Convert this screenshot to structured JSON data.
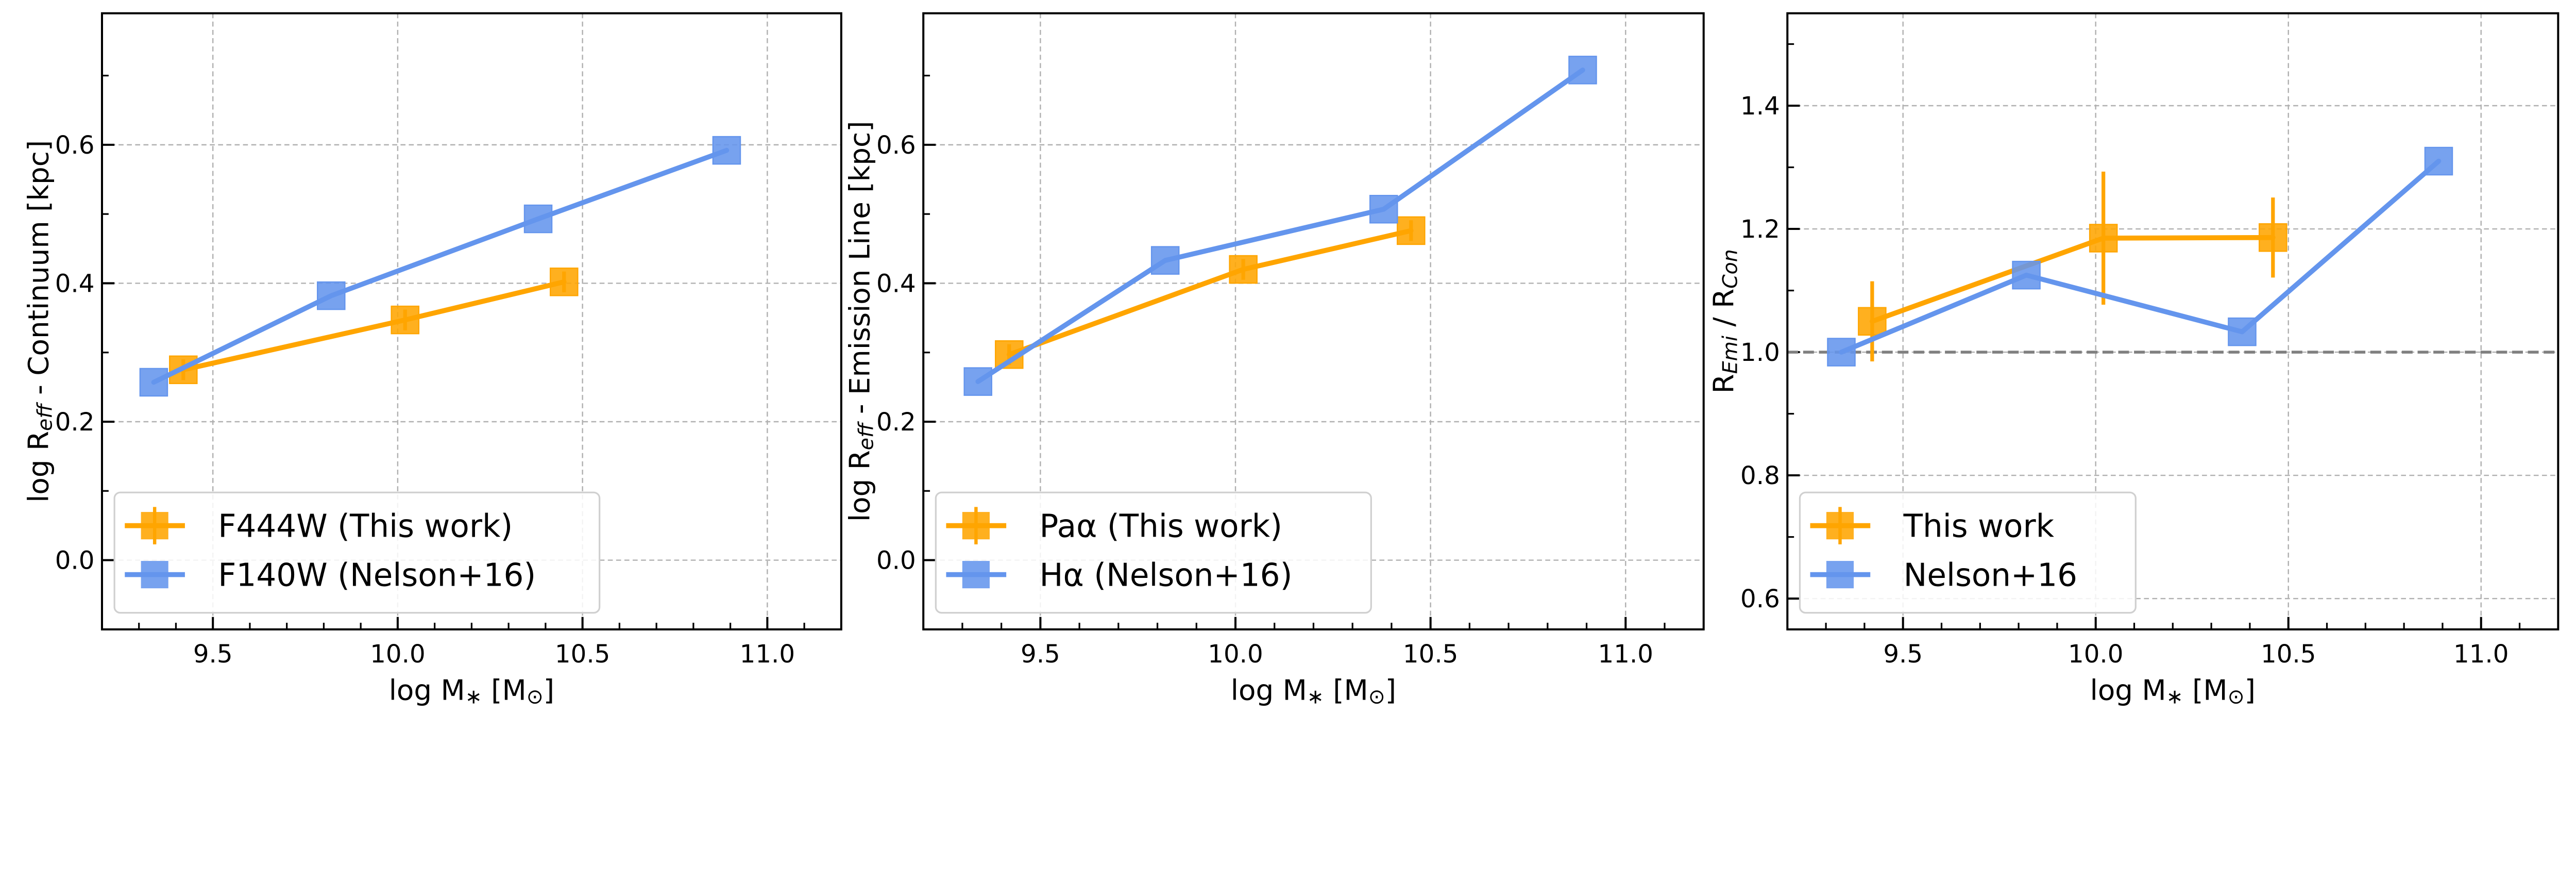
{
  "colors": {
    "this_work": "#FFA500",
    "nelson": "#6495ED",
    "grid": "#b0b0b0",
    "hline": "#808080"
  },
  "chart_data": [
    {
      "type": "line",
      "xlabel": [
        {
          "t": "log M"
        },
        {
          "t": "∗",
          "sub": true
        },
        {
          "t": " [M"
        },
        {
          "t": "⊙",
          "sub": true
        },
        {
          "t": "]"
        }
      ],
      "ylabel": [
        {
          "t": "log R"
        },
        {
          "t": "eff",
          "sub": true,
          "italic": true
        },
        {
          "t": " - Continuum [kpc]"
        }
      ],
      "xlim": [
        9.2,
        11.2
      ],
      "ylim": [
        -0.1,
        0.79
      ],
      "xticks": [
        9.5,
        10.0,
        10.5,
        11.0
      ],
      "xtick_labels": [
        "9.5",
        "10.0",
        "10.5",
        "11.0"
      ],
      "yticks": [
        0.0,
        0.2,
        0.4,
        0.6
      ],
      "ytick_labels": [
        "0.0",
        "0.2",
        "0.4",
        "0.6"
      ],
      "grid": true,
      "legend_position": "lower-left",
      "series": [
        {
          "name": "F444W (This work)",
          "color_key": "this_work",
          "marker": "square",
          "x": [
            9.42,
            10.02,
            10.45
          ],
          "y": [
            0.275,
            0.347,
            0.402
          ],
          "yerr": [
            0.015,
            0.015,
            0.015
          ]
        },
        {
          "name": "F140W (Nelson+16)",
          "color_key": "nelson",
          "marker": "square",
          "x": [
            9.34,
            9.82,
            10.38,
            10.89
          ],
          "y": [
            0.257,
            0.382,
            0.493,
            0.592
          ]
        }
      ]
    },
    {
      "type": "line",
      "xlabel": [
        {
          "t": "log M"
        },
        {
          "t": "∗",
          "sub": true
        },
        {
          "t": " [M"
        },
        {
          "t": "⊙",
          "sub": true
        },
        {
          "t": "]"
        }
      ],
      "ylabel": [
        {
          "t": "log R"
        },
        {
          "t": "eff",
          "sub": true,
          "italic": true
        },
        {
          "t": " - Emission Line [kpc]"
        }
      ],
      "xlim": [
        9.2,
        11.2
      ],
      "ylim": [
        -0.1,
        0.79
      ],
      "xticks": [
        9.5,
        10.0,
        10.5,
        11.0
      ],
      "xtick_labels": [
        "9.5",
        "10.0",
        "10.5",
        "11.0"
      ],
      "yticks": [
        0.0,
        0.2,
        0.4,
        0.6
      ],
      "ytick_labels": [
        "0.0",
        "0.2",
        "0.4",
        "0.6"
      ],
      "grid": true,
      "legend_position": "lower-left",
      "series": [
        {
          "name": "Paα (This work)",
          "color_key": "this_work",
          "marker": "square",
          "x": [
            9.42,
            10.02,
            10.45
          ],
          "y": [
            0.297,
            0.42,
            0.476
          ],
          "yerr": [
            0.015,
            0.015,
            0.015
          ]
        },
        {
          "name": "Hα (Nelson+16)",
          "color_key": "nelson",
          "marker": "square",
          "x": [
            9.34,
            9.82,
            10.38,
            10.89
          ],
          "y": [
            0.258,
            0.433,
            0.507,
            0.708
          ]
        }
      ]
    },
    {
      "type": "line",
      "xlabel": [
        {
          "t": "log M"
        },
        {
          "t": "∗",
          "sub": true
        },
        {
          "t": " [M"
        },
        {
          "t": "⊙",
          "sub": true
        },
        {
          "t": "]"
        }
      ],
      "ylabel": [
        {
          "t": "R"
        },
        {
          "t": "Emi",
          "sub": true,
          "italic": true
        },
        {
          "t": " / R"
        },
        {
          "t": "Con",
          "sub": true,
          "italic": true
        }
      ],
      "xlim": [
        9.2,
        11.2
      ],
      "ylim": [
        0.55,
        1.55
      ],
      "xticks": [
        9.5,
        10.0,
        10.5,
        11.0
      ],
      "xtick_labels": [
        "9.5",
        "10.0",
        "10.5",
        "11.0"
      ],
      "yticks": [
        0.6,
        0.8,
        1.0,
        1.2,
        1.4
      ],
      "ytick_labels": [
        "0.6",
        "0.8",
        "1.0",
        "1.2",
        "1.4"
      ],
      "grid": true,
      "legend_position": "lower-left",
      "hline": 1.0,
      "series": [
        {
          "name": "This work",
          "color_key": "this_work",
          "marker": "square",
          "x": [
            9.42,
            10.02,
            10.46
          ],
          "y": [
            1.05,
            1.185,
            1.186
          ],
          "yerr": [
            0.065,
            0.108,
            0.065
          ]
        },
        {
          "name": "Nelson+16",
          "color_key": "nelson",
          "marker": "square",
          "x": [
            9.34,
            9.82,
            10.38,
            10.89
          ],
          "y": [
            1.0,
            1.125,
            1.033,
            1.31
          ]
        }
      ]
    }
  ]
}
